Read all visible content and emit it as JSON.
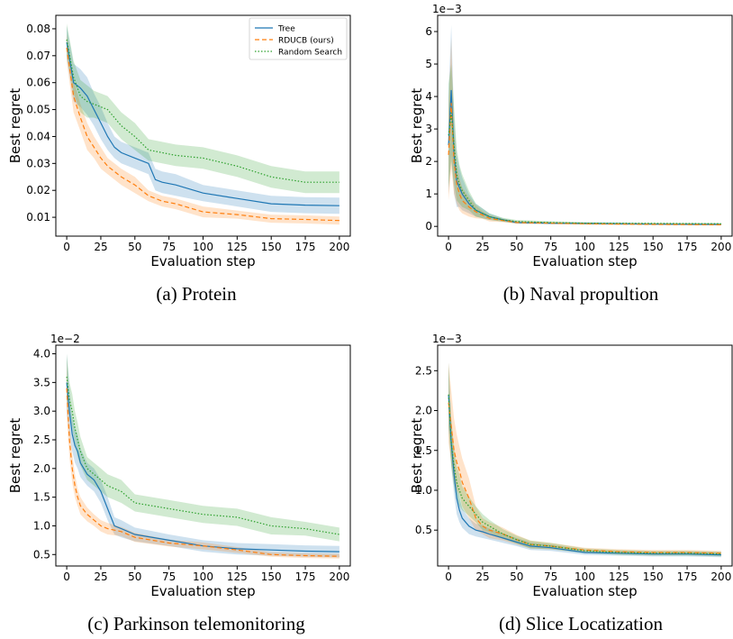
{
  "colors": {
    "tree": "#1f77b4",
    "rducb": "#ff7f0e",
    "random": "#2ca02c"
  },
  "captions": [
    "(a) Protein",
    "(b) Naval propultion",
    "(c) Parkinson telemonitoring",
    "(d) Slice Locatization"
  ],
  "legend": [
    "Tree",
    "RDUCB (ours)",
    "Random Search"
  ],
  "chart_data": [
    {
      "type": "line",
      "title": "",
      "xlabel": "Evaluation step",
      "ylabel": "Best regret",
      "multiplier": "",
      "xlim": [
        -8,
        208
      ],
      "ylim": [
        0.003,
        0.085
      ],
      "xticks": [
        "0",
        "25",
        "50",
        "75",
        "100",
        "125",
        "150",
        "175",
        "200"
      ],
      "yticks": [
        "0.01",
        "0.02",
        "0.03",
        "0.04",
        "0.05",
        "0.06",
        "0.07",
        "0.08"
      ],
      "legend_position": "top-right",
      "series": [
        {
          "name": "Tree",
          "style": "solid",
          "x": [
            0,
            5,
            10,
            15,
            20,
            25,
            30,
            35,
            40,
            50,
            60,
            65,
            70,
            80,
            100,
            125,
            150,
            175,
            200
          ],
          "y": [
            0.075,
            0.06,
            0.058,
            0.055,
            0.05,
            0.045,
            0.04,
            0.036,
            0.034,
            0.032,
            0.03,
            0.024,
            0.023,
            0.022,
            0.019,
            0.017,
            0.015,
            0.0145,
            0.0143
          ],
          "band": [
            0.006,
            0.007,
            0.007,
            0.007,
            0.006,
            0.006,
            0.005,
            0.004,
            0.004,
            0.004,
            0.004,
            0.004,
            0.004,
            0.004,
            0.003,
            0.003,
            0.003,
            0.003,
            0.003
          ]
        },
        {
          "name": "RDUCB (ours)",
          "style": "dashed",
          "x": [
            0,
            5,
            10,
            15,
            20,
            25,
            30,
            35,
            40,
            50,
            60,
            70,
            80,
            100,
            125,
            150,
            175,
            200
          ],
          "y": [
            0.073,
            0.055,
            0.047,
            0.04,
            0.036,
            0.032,
            0.029,
            0.027,
            0.025,
            0.022,
            0.018,
            0.016,
            0.015,
            0.012,
            0.011,
            0.0095,
            0.0092,
            0.0088
          ],
          "band": [
            0.005,
            0.006,
            0.005,
            0.005,
            0.004,
            0.004,
            0.003,
            0.003,
            0.003,
            0.003,
            0.002,
            0.002,
            0.002,
            0.002,
            0.0015,
            0.0015,
            0.0015,
            0.0015
          ]
        },
        {
          "name": "Random Search",
          "style": "dotted",
          "x": [
            0,
            5,
            10,
            15,
            20,
            30,
            40,
            50,
            60,
            70,
            80,
            100,
            125,
            150,
            175,
            200
          ],
          "y": [
            0.076,
            0.062,
            0.055,
            0.053,
            0.052,
            0.05,
            0.044,
            0.04,
            0.035,
            0.034,
            0.033,
            0.032,
            0.029,
            0.025,
            0.023,
            0.023
          ],
          "band": [
            0.006,
            0.006,
            0.006,
            0.006,
            0.005,
            0.005,
            0.005,
            0.005,
            0.004,
            0.004,
            0.004,
            0.004,
            0.004,
            0.004,
            0.004,
            0.004
          ]
        }
      ]
    },
    {
      "type": "line",
      "title": "",
      "xlabel": "Evaluation step",
      "ylabel": "Best regret",
      "multiplier": "1e−3",
      "xlim": [
        -8,
        208
      ],
      "ylim": [
        -0.3,
        6.5
      ],
      "xticks": [
        "0",
        "25",
        "50",
        "75",
        "100",
        "125",
        "150",
        "175",
        "200"
      ],
      "yticks": [
        "0",
        "1",
        "2",
        "3",
        "4",
        "5",
        "6"
      ],
      "series": [
        {
          "name": "Tree",
          "style": "solid",
          "x": [
            0,
            2,
            4,
            6,
            8,
            10,
            15,
            20,
            25,
            30,
            40,
            50,
            75,
            100,
            150,
            200
          ],
          "y": [
            2.5,
            4.2,
            2.2,
            1.4,
            1.2,
            1.0,
            0.7,
            0.5,
            0.4,
            0.3,
            0.2,
            0.12,
            0.1,
            0.09,
            0.07,
            0.06
          ],
          "band": [
            1.5,
            2.0,
            1.2,
            0.8,
            0.6,
            0.5,
            0.3,
            0.2,
            0.15,
            0.1,
            0.05,
            0.04,
            0.03,
            0.03,
            0.02,
            0.02
          ]
        },
        {
          "name": "RDUCB (ours)",
          "style": "dashed",
          "x": [
            0,
            2,
            4,
            6,
            8,
            10,
            15,
            20,
            25,
            30,
            40,
            50,
            75,
            100,
            150,
            200
          ],
          "y": [
            2.2,
            3.8,
            2.0,
            1.3,
            1.0,
            0.8,
            0.6,
            0.45,
            0.35,
            0.25,
            0.18,
            0.12,
            0.1,
            0.08,
            0.06,
            0.05
          ],
          "band": [
            1.4,
            2.0,
            1.0,
            0.6,
            0.5,
            0.4,
            0.3,
            0.2,
            0.12,
            0.1,
            0.05,
            0.04,
            0.03,
            0.03,
            0.02,
            0.02
          ]
        },
        {
          "name": "Random Search",
          "style": "dotted",
          "x": [
            0,
            2,
            4,
            6,
            8,
            10,
            15,
            20,
            25,
            30,
            40,
            50,
            75,
            100,
            150,
            200
          ],
          "y": [
            2.8,
            3.5,
            2.5,
            1.6,
            1.3,
            1.1,
            0.8,
            0.5,
            0.4,
            0.3,
            0.2,
            0.15,
            0.12,
            0.1,
            0.09,
            0.08
          ],
          "band": [
            1.6,
            1.5,
            1.2,
            0.8,
            0.6,
            0.5,
            0.3,
            0.2,
            0.15,
            0.1,
            0.06,
            0.05,
            0.04,
            0.03,
            0.03,
            0.03
          ]
        }
      ]
    },
    {
      "type": "line",
      "title": "",
      "xlabel": "Evaluation step",
      "ylabel": "Best regret",
      "multiplier": "1e−2",
      "xlim": [
        -8,
        208
      ],
      "ylim": [
        0.3,
        4.15
      ],
      "xticks": [
        "0",
        "25",
        "50",
        "75",
        "100",
        "125",
        "150",
        "175",
        "200"
      ],
      "yticks": [
        "0.5",
        "1.0",
        "1.5",
        "2.0",
        "2.5",
        "3.0",
        "3.5",
        "4.0"
      ],
      "series": [
        {
          "name": "Tree",
          "style": "solid",
          "x": [
            0,
            2,
            4,
            6,
            8,
            10,
            15,
            20,
            25,
            30,
            35,
            40,
            50,
            75,
            100,
            125,
            150,
            175,
            200
          ],
          "y": [
            3.5,
            3.0,
            2.6,
            2.4,
            2.3,
            2.1,
            1.9,
            1.8,
            1.6,
            1.3,
            1.0,
            0.95,
            0.85,
            0.75,
            0.65,
            0.6,
            0.58,
            0.56,
            0.55
          ],
          "band": [
            0.5,
            0.4,
            0.3,
            0.3,
            0.3,
            0.25,
            0.2,
            0.2,
            0.2,
            0.2,
            0.15,
            0.15,
            0.12,
            0.1,
            0.1,
            0.1,
            0.1,
            0.1,
            0.1
          ]
        },
        {
          "name": "RDUCB (ours)",
          "style": "dashed",
          "x": [
            0,
            2,
            4,
            6,
            8,
            10,
            15,
            20,
            25,
            30,
            40,
            50,
            75,
            100,
            125,
            150,
            175,
            200
          ],
          "y": [
            3.4,
            2.5,
            2.0,
            1.7,
            1.5,
            1.35,
            1.2,
            1.1,
            1.0,
            0.95,
            0.9,
            0.8,
            0.7,
            0.65,
            0.58,
            0.5,
            0.48,
            0.47
          ],
          "band": [
            0.5,
            0.3,
            0.25,
            0.2,
            0.15,
            0.15,
            0.12,
            0.1,
            0.1,
            0.1,
            0.08,
            0.08,
            0.06,
            0.06,
            0.05,
            0.04,
            0.04,
            0.04
          ]
        },
        {
          "name": "Random Search",
          "style": "dotted",
          "x": [
            0,
            2,
            4,
            6,
            8,
            10,
            15,
            20,
            25,
            30,
            40,
            50,
            75,
            100,
            125,
            150,
            175,
            200
          ],
          "y": [
            3.6,
            3.2,
            3.0,
            2.7,
            2.5,
            2.3,
            2.0,
            1.9,
            1.8,
            1.7,
            1.6,
            1.4,
            1.3,
            1.2,
            1.15,
            1.0,
            0.95,
            0.85
          ],
          "band": [
            0.4,
            0.3,
            0.3,
            0.3,
            0.3,
            0.25,
            0.2,
            0.2,
            0.2,
            0.2,
            0.2,
            0.15,
            0.15,
            0.15,
            0.15,
            0.15,
            0.12,
            0.12
          ]
        }
      ]
    },
    {
      "type": "line",
      "title": "",
      "xlabel": "Evaluation step",
      "ylabel": "Best regret",
      "multiplier": "1e−3",
      "xlim": [
        -8,
        208
      ],
      "ylim": [
        0.05,
        2.82
      ],
      "xticks": [
        "0",
        "25",
        "50",
        "75",
        "100",
        "125",
        "150",
        "175",
        "200"
      ],
      "yticks": [
        "0.5",
        "1.0",
        "1.5",
        "2.0",
        "2.5"
      ],
      "series": [
        {
          "name": "Tree",
          "style": "solid",
          "x": [
            0,
            2,
            4,
            6,
            8,
            10,
            15,
            20,
            25,
            30,
            40,
            50,
            60,
            75,
            100,
            125,
            150,
            175,
            200
          ],
          "y": [
            2.2,
            1.6,
            1.2,
            0.9,
            0.75,
            0.65,
            0.55,
            0.5,
            0.48,
            0.45,
            0.4,
            0.35,
            0.3,
            0.28,
            0.22,
            0.21,
            0.2,
            0.2,
            0.19
          ],
          "band": [
            0.4,
            0.3,
            0.25,
            0.2,
            0.15,
            0.12,
            0.1,
            0.08,
            0.08,
            0.07,
            0.06,
            0.05,
            0.05,
            0.04,
            0.03,
            0.03,
            0.03,
            0.03,
            0.03
          ]
        },
        {
          "name": "RDUCB (ours)",
          "style": "dashed",
          "x": [
            0,
            2,
            4,
            6,
            8,
            10,
            15,
            20,
            25,
            30,
            40,
            50,
            60,
            75,
            100,
            125,
            150,
            175,
            200
          ],
          "y": [
            2.1,
            1.8,
            1.5,
            1.35,
            1.25,
            1.1,
            0.9,
            0.65,
            0.55,
            0.5,
            0.45,
            0.38,
            0.32,
            0.3,
            0.25,
            0.23,
            0.22,
            0.22,
            0.21
          ],
          "band": [
            0.5,
            0.45,
            0.4,
            0.35,
            0.3,
            0.3,
            0.25,
            0.15,
            0.1,
            0.1,
            0.08,
            0.06,
            0.05,
            0.04,
            0.03,
            0.03,
            0.03,
            0.03,
            0.03
          ]
        },
        {
          "name": "Random Search",
          "style": "dotted",
          "x": [
            0,
            2,
            4,
            6,
            8,
            10,
            15,
            20,
            25,
            30,
            40,
            50,
            60,
            75,
            100,
            125,
            150,
            175,
            200
          ],
          "y": [
            2.2,
            1.6,
            1.3,
            1.1,
            1.0,
            0.9,
            0.8,
            0.7,
            0.6,
            0.55,
            0.45,
            0.38,
            0.32,
            0.3,
            0.24,
            0.22,
            0.21,
            0.21,
            0.2
          ],
          "band": [
            0.4,
            0.3,
            0.25,
            0.2,
            0.2,
            0.15,
            0.12,
            0.1,
            0.1,
            0.08,
            0.06,
            0.05,
            0.05,
            0.04,
            0.03,
            0.03,
            0.03,
            0.03,
            0.03
          ]
        }
      ]
    }
  ]
}
